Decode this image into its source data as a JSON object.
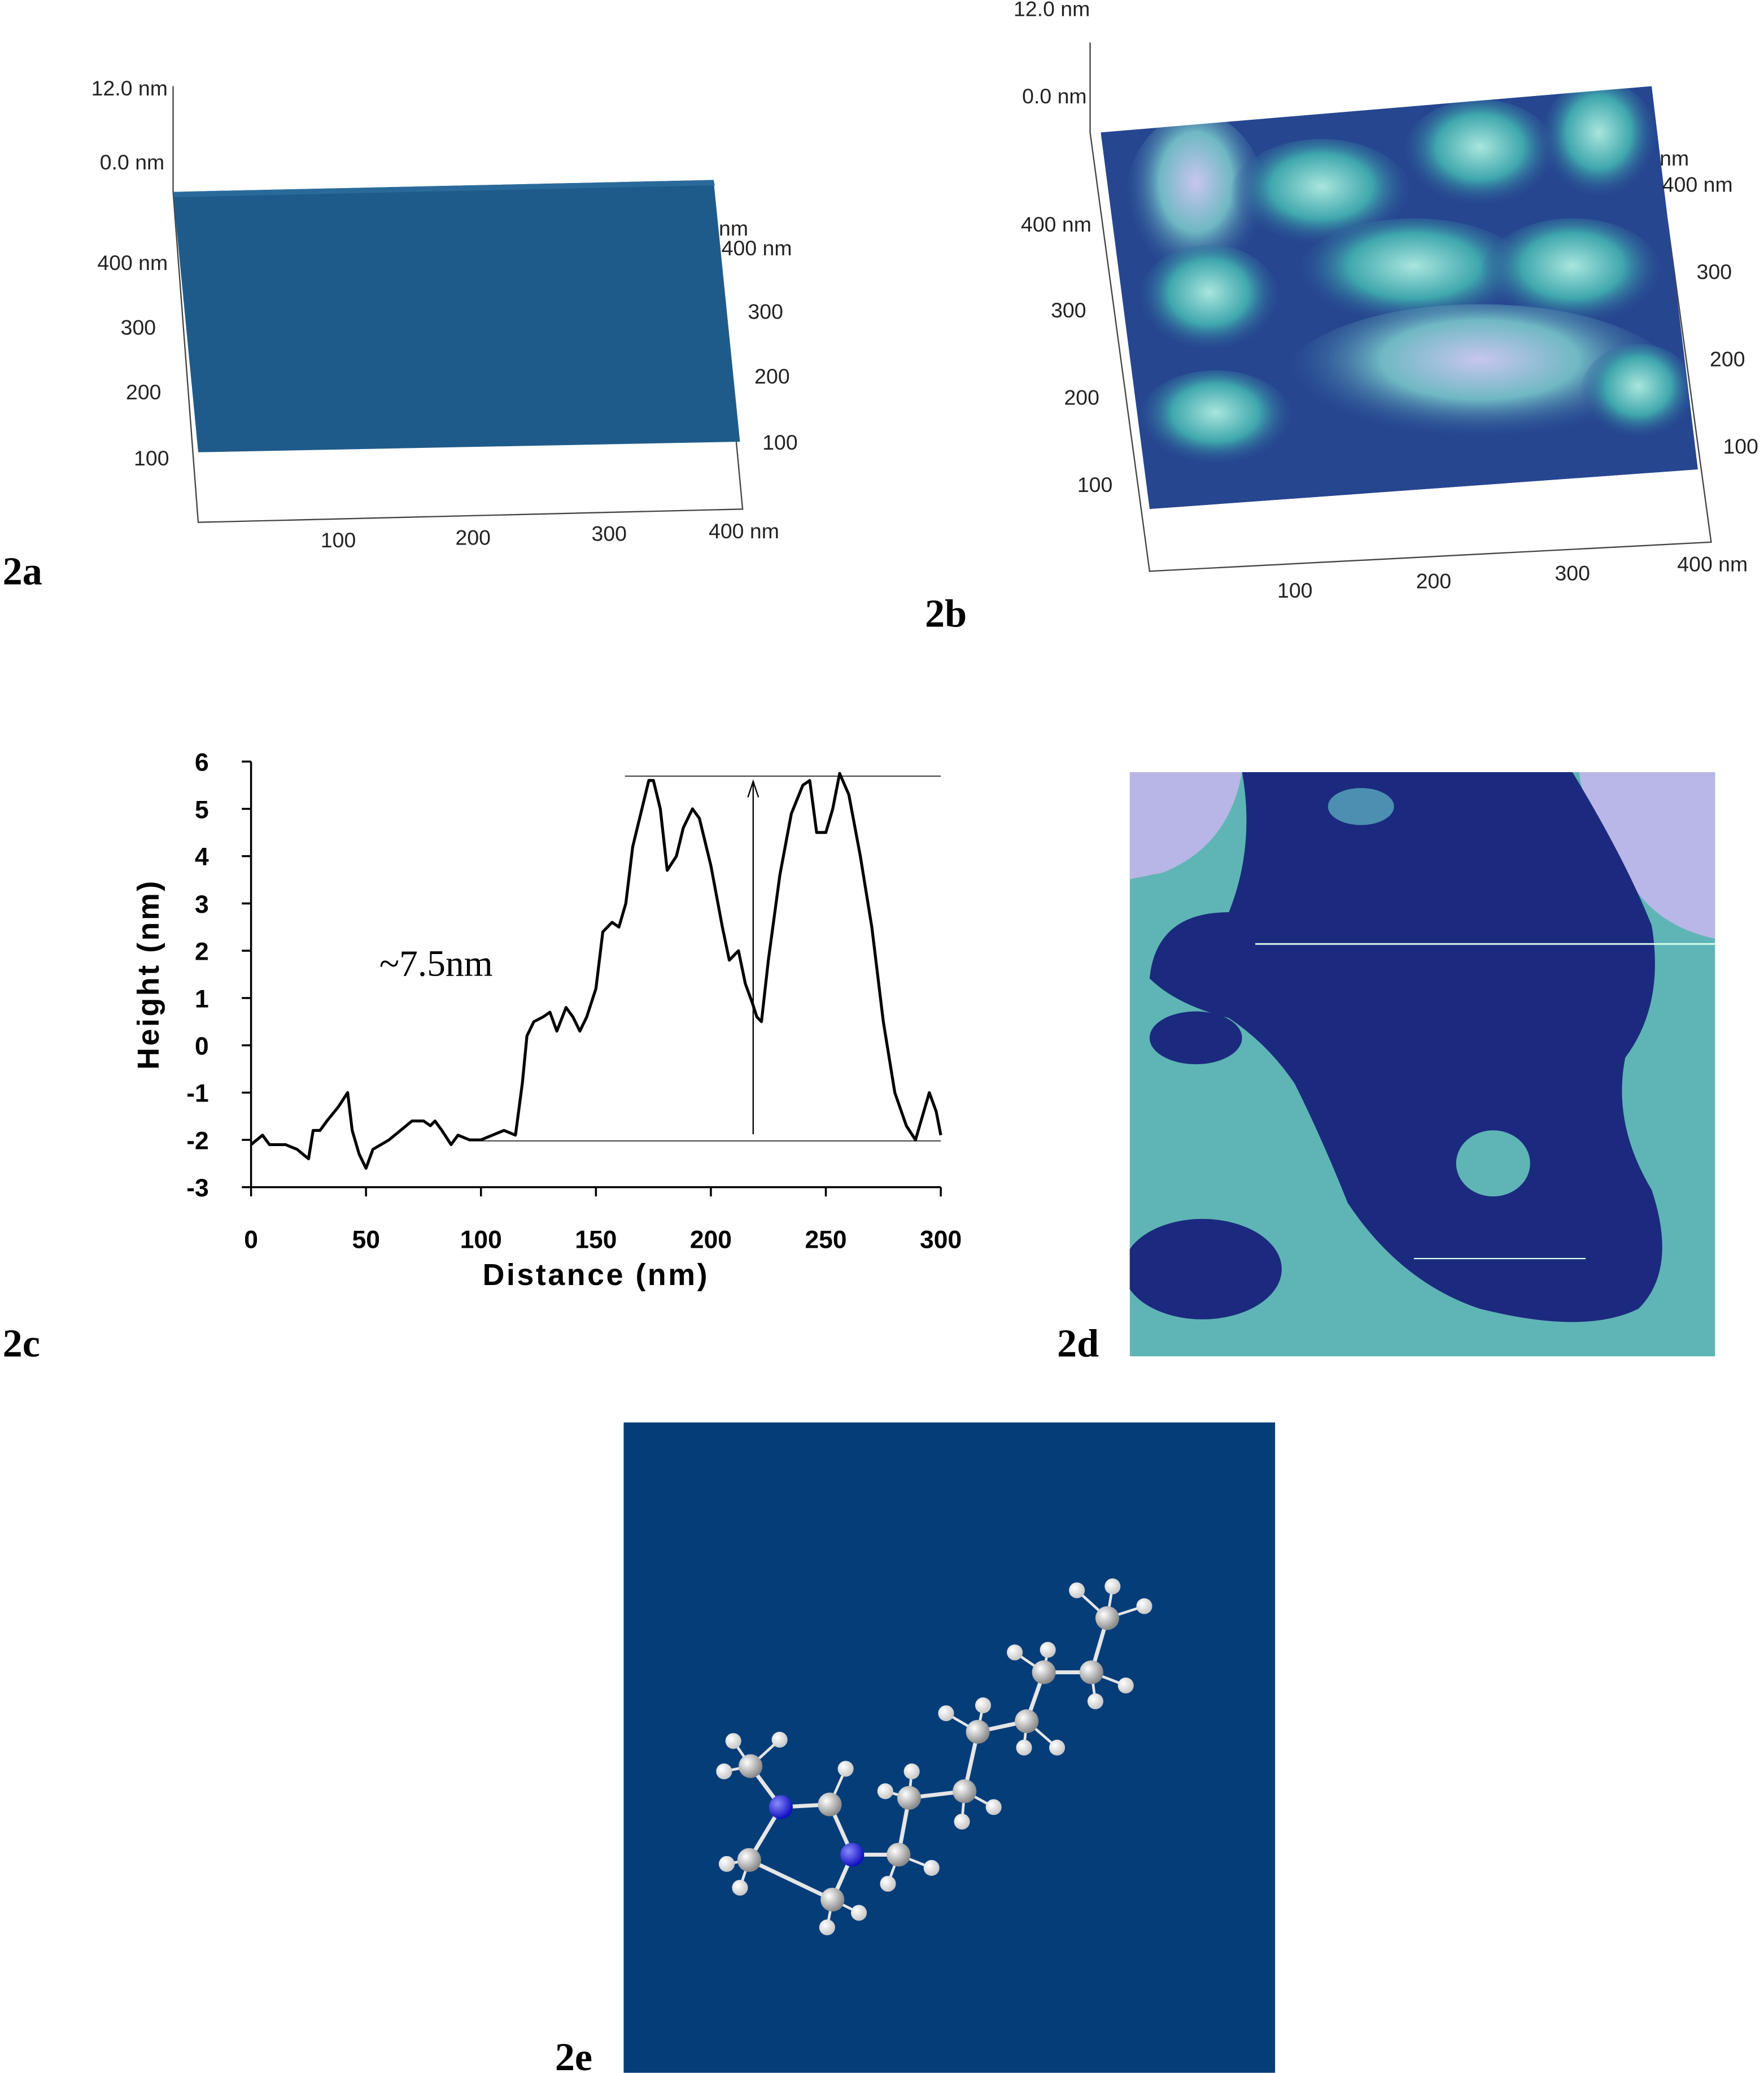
{
  "panels": {
    "a": {
      "label": "2a",
      "z_labels": [
        "12.0 nm",
        "0.0 nm"
      ],
      "left_labels": [
        "400 nm",
        "300",
        "200",
        "100"
      ],
      "right_labels": [
        "nm",
        "400 nm",
        "300",
        "200",
        "100"
      ],
      "bottom_labels": [
        "100",
        "200",
        "300",
        "400 nm"
      ]
    },
    "b": {
      "label": "2b",
      "z_labels": [
        "12.0 nm",
        "0.0 nm"
      ],
      "left_labels": [
        "400 nm",
        "300",
        "200",
        "100"
      ],
      "right_labels": [
        "nm",
        "400 nm",
        "300",
        "200",
        "100"
      ],
      "bottom_labels": [
        "100",
        "200",
        "300",
        "400 nm"
      ]
    },
    "d": {
      "label": "2d"
    },
    "e": {
      "label": "2e"
    }
  },
  "chart_data": {
    "type": "line",
    "panel_label": "2c",
    "xlabel": "Distance (nm)",
    "ylabel": "Height (nm)",
    "annotation": "~7.5nm",
    "x": [
      0,
      5,
      8,
      15,
      20,
      25,
      27,
      30,
      33,
      38,
      42,
      44,
      47,
      50,
      53,
      60,
      65,
      70,
      75,
      78,
      80,
      83,
      87,
      90,
      95,
      100,
      105,
      110,
      115,
      118,
      120,
      123,
      127,
      130,
      133,
      137,
      140,
      143,
      146,
      150,
      153,
      157,
      160,
      163,
      166,
      170,
      173,
      175,
      178,
      181,
      185,
      188,
      192,
      195,
      200,
      205,
      208,
      212,
      215,
      218,
      220,
      222,
      225,
      230,
      235,
      240,
      243,
      246,
      250,
      253,
      256,
      260,
      265,
      270,
      275,
      280,
      285,
      289,
      292,
      295,
      298,
      300
    ],
    "values": [
      -2.1,
      -1.9,
      -2.1,
      -2.1,
      -2.2,
      -2.4,
      -1.8,
      -1.8,
      -1.6,
      -1.3,
      -1.0,
      -1.8,
      -2.3,
      -2.6,
      -2.2,
      -2.0,
      -1.8,
      -1.6,
      -1.6,
      -1.7,
      -1.6,
      -1.8,
      -2.1,
      -1.9,
      -2.0,
      -2.0,
      -1.9,
      -1.8,
      -1.9,
      -0.8,
      0.2,
      0.5,
      0.6,
      0.7,
      0.3,
      0.8,
      0.6,
      0.3,
      0.6,
      1.2,
      2.4,
      2.6,
      2.5,
      3.0,
      4.2,
      5.0,
      5.6,
      5.6,
      5.0,
      3.7,
      4.0,
      4.6,
      5.0,
      4.8,
      3.8,
      2.5,
      1.8,
      2.0,
      1.3,
      0.9,
      0.6,
      0.5,
      1.8,
      3.6,
      4.9,
      5.5,
      5.6,
      4.5,
      4.5,
      5.0,
      5.75,
      5.3,
      4.0,
      2.5,
      0.5,
      -1.0,
      -1.7,
      -2.0,
      -1.5,
      -1.0,
      -1.4,
      -1.9
    ],
    "color": "#000000",
    "xlim": [
      0,
      300
    ],
    "ylim": [
      -3,
      6
    ],
    "xticks": [
      0,
      50,
      100,
      150,
      200,
      250,
      300
    ],
    "yticks": [
      -3,
      -2,
      -1,
      0,
      1,
      2,
      3,
      4,
      5,
      6
    ]
  }
}
